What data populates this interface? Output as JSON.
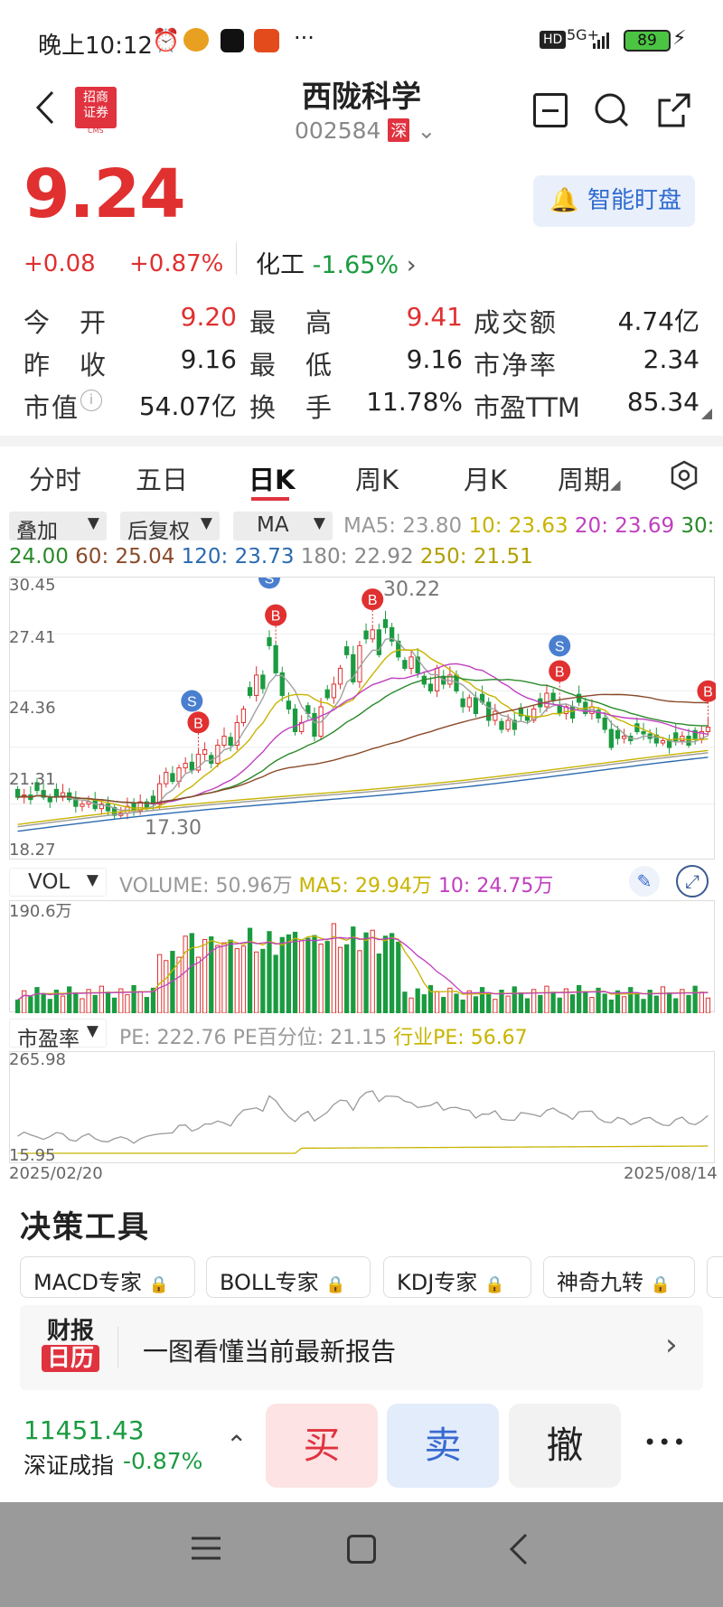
{
  "status": {
    "time": "晚上10:12",
    "icons": [
      "alarm-icon",
      "weibo-icon",
      "soul-icon",
      "sougou-icon"
    ],
    "more": "···",
    "hd": "HD",
    "net": "5G+",
    "battery": "89"
  },
  "header": {
    "logo_line1": "招商",
    "logo_line2": "证券",
    "logo_sub": "CMS",
    "name": "西陇科学",
    "code": "002584",
    "market": "深"
  },
  "quote": {
    "price": "9.24",
    "change": "+0.08",
    "pct": "+0.87%",
    "sector": "化工",
    "sector_pct": "-1.65%",
    "alert_label": "智能盯盘"
  },
  "stats": [
    {
      "k": "今　开",
      "v": "9.20",
      "color": "red"
    },
    {
      "k": "最　高",
      "v": "9.41",
      "color": "red"
    },
    {
      "k": "成交额",
      "v": "4.74亿",
      "color": "black"
    },
    {
      "k": "昨　收",
      "v": "9.16",
      "color": "black"
    },
    {
      "k": "最　低",
      "v": "9.16",
      "color": "black"
    },
    {
      "k": "市净率",
      "v": "2.34",
      "color": "black"
    },
    {
      "k": "市值",
      "v": "54.07亿",
      "color": "black"
    },
    {
      "k": "换　手",
      "v": "11.78%",
      "color": "black"
    },
    {
      "k": "市盈TTM",
      "v": "85.34",
      "color": "black"
    }
  ],
  "tabs": [
    "分时",
    "五日",
    "日K",
    "周K",
    "月K",
    "周期"
  ],
  "active_tab": "日K",
  "controls": {
    "overlay": "叠加",
    "adjust": "后复权",
    "ma": "MA"
  },
  "ma_legend": {
    "l1a": "MA5: 23.80",
    "l1b": "10: 23.63",
    "l1c": "20: 23.69",
    "l1d": "30:",
    "l2a": "24.00",
    "l2b": "60: 25.04",
    "l2c": "120: 23.73",
    "l2d": "180: 22.92",
    "l2e": "250: 21.51"
  },
  "vol_legend": {
    "sel": "VOL",
    "a": "VOLUME: 50.96万",
    "b": "MA5: 29.94万",
    "c": "10: 24.75万"
  },
  "pe_legend": {
    "sel": "市盈率",
    "a": "PE: 222.76",
    "b": "PE百分位: 21.15",
    "c": "行业PE: 56.67"
  },
  "chart_data": {
    "type": "candlestick",
    "y_ticks": [
      "30.45",
      "27.41",
      "24.36",
      "21.31",
      "18.27"
    ],
    "high_label": "30.22",
    "low_label": "17.30",
    "vol_max_label": "190.6万",
    "pe_ticks": [
      "265.98",
      "15.95"
    ],
    "dates": [
      "2025/02/20",
      "2025/08/14"
    ],
    "ylim": [
      18.27,
      30.45
    ],
    "closes": [
      20.9,
      21.0,
      20.8,
      21.2,
      20.9,
      20.7,
      20.9,
      21.1,
      20.8,
      20.5,
      20.6,
      20.7,
      20.4,
      20.6,
      20.3,
      20.1,
      20.2,
      20.5,
      20.3,
      20.7,
      20.4,
      20.6,
      21.5,
      22.0,
      21.6,
      22.2,
      22.4,
      22.1,
      22.8,
      23.0,
      22.4,
      23.2,
      23.6,
      23.2,
      24.2,
      24.8,
      25.4,
      26.3,
      25.7,
      27.6,
      26.4,
      25.4,
      24.8,
      23.8,
      24.2,
      24.6,
      23.6,
      24.9,
      25.3,
      25.9,
      26.6,
      27.2,
      26.0,
      27.6,
      27.9,
      28.3,
      27.2,
      28.4,
      27.8,
      27.1,
      26.6,
      27.1,
      26.4,
      25.9,
      25.6,
      26.6,
      25.9,
      26.3,
      25.6,
      24.9,
      25.3,
      24.6,
      25.1,
      24.3,
      24.7,
      23.9,
      24.3,
      23.9,
      24.5,
      24.3,
      24.8,
      24.9,
      25.5,
      25.2,
      24.6,
      24.9,
      24.4,
      25.1,
      24.6,
      24.9,
      24.4,
      23.9,
      23.1,
      23.5,
      23.6,
      23.4,
      23.8,
      23.7,
      23.5,
      23.3,
      23.4,
      23.1,
      23.4,
      23.6,
      23.2,
      23.5,
      23.8,
      24.0
    ],
    "buy_markers": [
      28,
      40,
      55,
      84,
      112
    ],
    "sell_markers": [
      27,
      39,
      57,
      84
    ]
  },
  "tools": {
    "title": "决策工具",
    "items": [
      "MACD专家",
      "BOLL专家",
      "KDJ专家",
      "神奇九转"
    ]
  },
  "report": {
    "logo1": "财报",
    "logo2": "日历",
    "text": "一图看懂当前最新报告"
  },
  "index": {
    "value": "11451.43",
    "name": "深证成指",
    "pct": "-0.87%"
  },
  "actions": {
    "buy": "买",
    "sell": "卖",
    "cancel": "撤",
    "more": "•••"
  },
  "colors": {
    "up": "#e03030",
    "down": "#1a9b40",
    "accent": "#e0333f"
  }
}
